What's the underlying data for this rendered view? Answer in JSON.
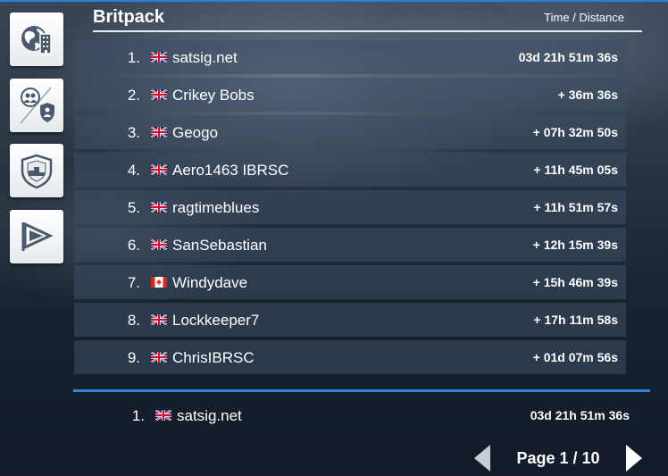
{
  "header": {
    "title": "Britpack",
    "column_label": "Time / Distance"
  },
  "sidebar": {
    "items": [
      {
        "icon": "globe-city-icon"
      },
      {
        "icon": "friends-shield-icon"
      },
      {
        "icon": "team-podium-shield-icon"
      },
      {
        "icon": "pennant-flag-icon"
      }
    ]
  },
  "leaderboard": {
    "rows": [
      {
        "rank": "1.",
        "flag": "uk",
        "name": "satsig.net",
        "time": "03d 21h 51m 36s"
      },
      {
        "rank": "2.",
        "flag": "uk",
        "name": "Crikey Bobs",
        "time": "+ 36m 36s"
      },
      {
        "rank": "3.",
        "flag": "uk",
        "name": "Geogo",
        "time": "+ 07h 32m 50s"
      },
      {
        "rank": "4.",
        "flag": "uk",
        "name": "Aero1463 IBRSC",
        "time": "+ 11h 45m 05s"
      },
      {
        "rank": "5.",
        "flag": "uk",
        "name": "ragtimeblues",
        "time": "+ 11h 51m 57s"
      },
      {
        "rank": "6.",
        "flag": "uk",
        "name": "SanSebastian",
        "time": "+ 12h 15m 39s"
      },
      {
        "rank": "7.",
        "flag": "canada",
        "name": "Windydave",
        "time": "+ 15h 46m 39s"
      },
      {
        "rank": "8.",
        "flag": "uk",
        "name": "Lockkeeper7",
        "time": "+ 17h 11m 58s"
      },
      {
        "rank": "9.",
        "flag": "uk",
        "name": "ChrisIBRSC",
        "time": "+ 01d 07m 56s"
      }
    ]
  },
  "current_player": {
    "rank": "1.",
    "flag": "uk",
    "name": "satsig.net",
    "time": "03d 21h 51m 36s"
  },
  "pager": {
    "label": "Page 1 / 10"
  },
  "colors": {
    "accent": "#2e86e0",
    "row_background": "#3c4e64",
    "text": "#ffffff"
  }
}
